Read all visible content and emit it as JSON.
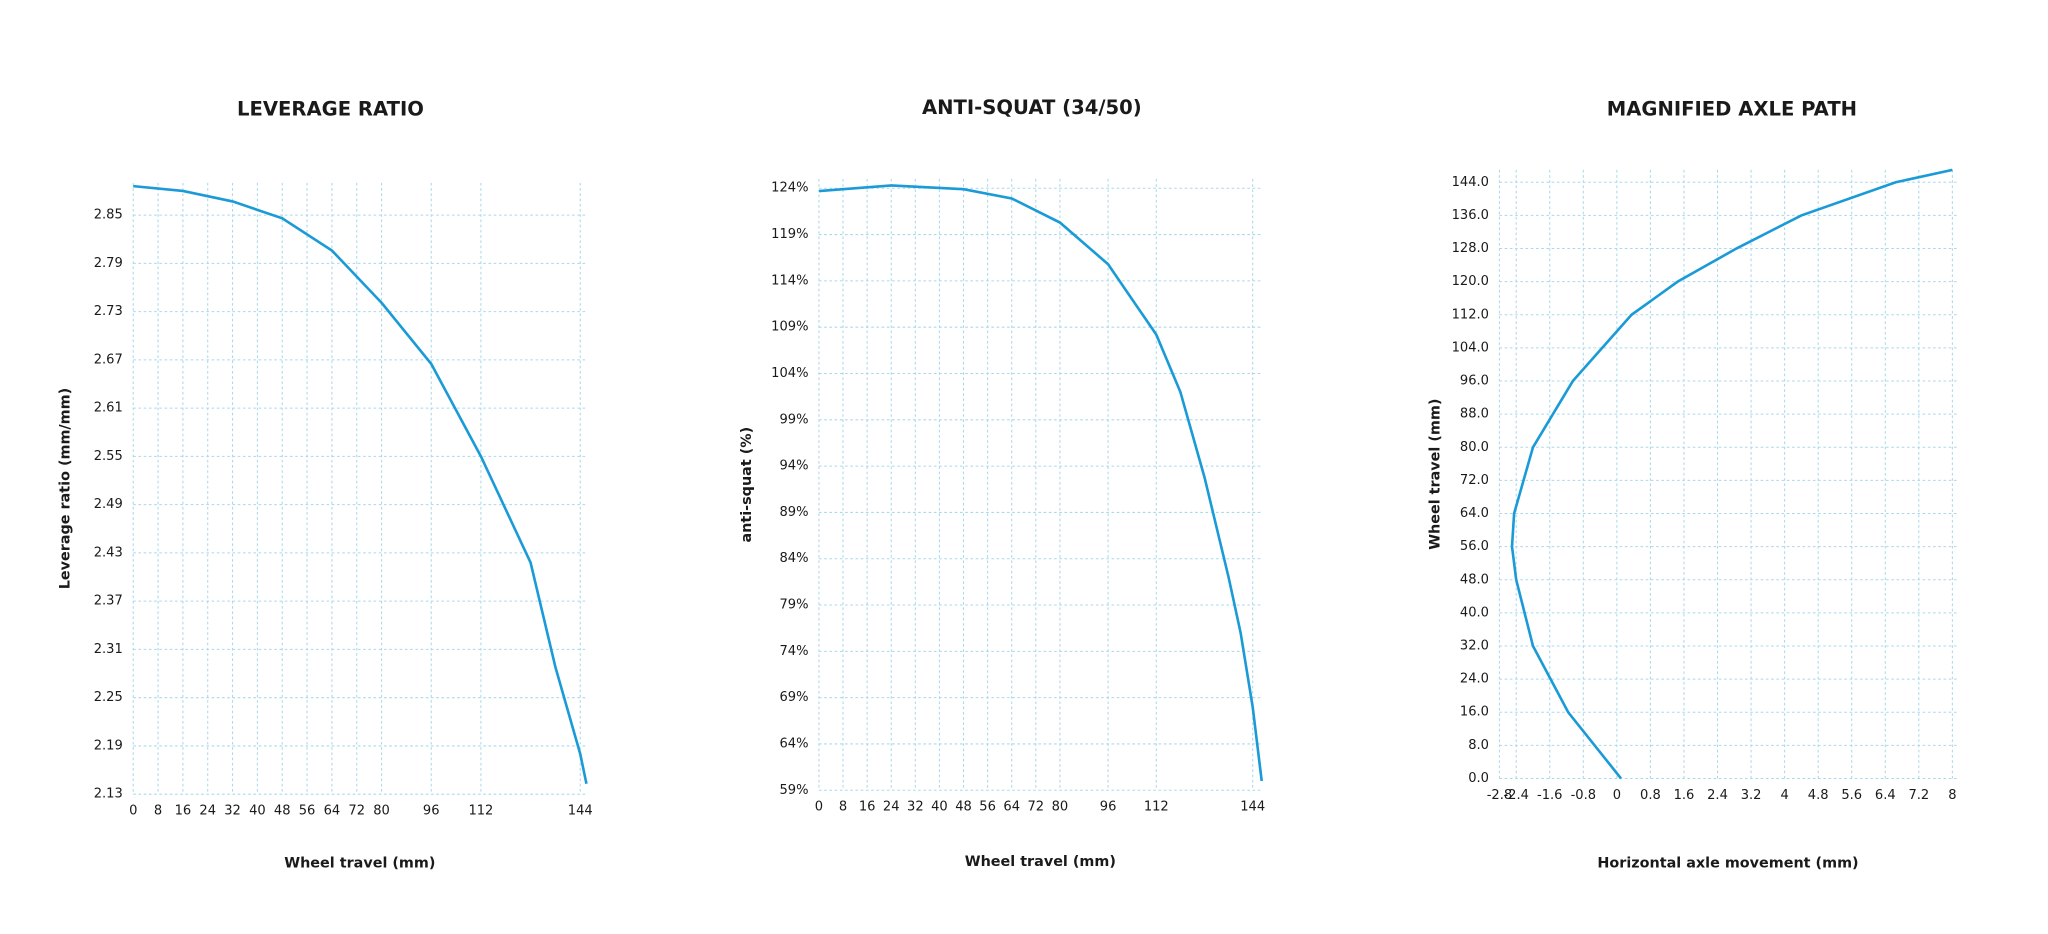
{
  "chart_data": [
    {
      "type": "line",
      "title": "LEVERAGE RATIO",
      "x_label": "Wheel travel (mm)",
      "y_label": "Leverage ratio (mm/mm)",
      "x": [
        0,
        16,
        32,
        48,
        64,
        80,
        96,
        112,
        128,
        136,
        144,
        146
      ],
      "values": [
        2.886,
        2.88,
        2.867,
        2.846,
        2.806,
        2.741,
        2.665,
        2.55,
        2.418,
        2.288,
        2.18,
        2.143
      ],
      "color": "#1a9ad6",
      "grid": true,
      "xlim": [
        0,
        146
      ],
      "ylim": [
        2.13,
        2.89
      ],
      "xticks": [
        0,
        8,
        16,
        24,
        32,
        40,
        48,
        56,
        64,
        72,
        80,
        96,
        112,
        144
      ],
      "yticks": [
        2.13,
        2.19,
        2.25,
        2.31,
        2.37,
        2.43,
        2.49,
        2.55,
        2.61,
        2.67,
        2.73,
        2.79,
        2.85
      ]
    },
    {
      "type": "line",
      "title": "ANTI-SQUAT (34/50)",
      "x_label": "Wheel travel (mm)",
      "y_label": "anti-squat (%)",
      "x": [
        0,
        24,
        48,
        64,
        80,
        96,
        112,
        120,
        128,
        136,
        140,
        144,
        147
      ],
      "values": [
        123.7,
        124.3,
        123.9,
        122.9,
        120.3,
        115.8,
        108.2,
        102,
        92.8,
        82,
        76,
        68,
        60
      ],
      "color": "#1a9ad6",
      "grid": true,
      "xlim": [
        0,
        147
      ],
      "ylim": [
        59,
        125
      ],
      "xticks": [
        0,
        8,
        16,
        24,
        32,
        40,
        48,
        56,
        64,
        72,
        80,
        96,
        112,
        144
      ],
      "yticks": [
        {
          "value": 59,
          "label": "59%"
        },
        {
          "value": 64,
          "label": "64%"
        },
        {
          "value": 69,
          "label": "69%"
        },
        {
          "value": 74,
          "label": "74%"
        },
        {
          "value": 79,
          "label": "79%"
        },
        {
          "value": 84,
          "label": "84%"
        },
        {
          "value": 89,
          "label": "89%"
        },
        {
          "value": 94,
          "label": "94%"
        },
        {
          "value": 99,
          "label": "99%"
        },
        {
          "value": 104,
          "label": "104%"
        },
        {
          "value": 109,
          "label": "109%"
        },
        {
          "value": 114,
          "label": "114%"
        },
        {
          "value": 119,
          "label": "119%"
        },
        {
          "value": 124,
          "label": "124%"
        }
      ]
    },
    {
      "type": "line",
      "title": "MAGNIFIED AXLE PATH",
      "x_label": "Horizontal axle movement (mm)",
      "y_label": "Wheel travel (mm)",
      "x": [
        0.1,
        -1.16,
        -2.0,
        -2.4,
        -2.5,
        -2.45,
        -2.0,
        -1.05,
        0.35,
        1.45,
        2.85,
        4.4,
        6.65,
        8.0
      ],
      "values": [
        0,
        16,
        32,
        48,
        56,
        64,
        80,
        96,
        112,
        120,
        128,
        136,
        144,
        147
      ],
      "color": "#1a9ad6",
      "grid": true,
      "xlim": [
        -2.8,
        8.1
      ],
      "ylim": [
        0,
        147
      ],
      "xticks": [
        -2.8,
        -2.4,
        -1.6,
        -0.8,
        0,
        0.8,
        1.6,
        2.4,
        3.2,
        4,
        4.8,
        5.6,
        6.4,
        7.2,
        8
      ],
      "yticks": [
        {
          "value": 0,
          "label": "0.0"
        },
        {
          "value": 8,
          "label": "8.0"
        },
        {
          "value": 16,
          "label": "16.0"
        },
        {
          "value": 24,
          "label": "24.0"
        },
        {
          "value": 32,
          "label": "32.0"
        },
        {
          "value": 40,
          "label": "40.0"
        },
        {
          "value": 48,
          "label": "48.0"
        },
        {
          "value": 56,
          "label": "56.0"
        },
        {
          "value": 64,
          "label": "64.0"
        },
        {
          "value": 72,
          "label": "72.0"
        },
        {
          "value": 80,
          "label": "80.0"
        },
        {
          "value": 88,
          "label": "88.0"
        },
        {
          "value": 96,
          "label": "96.0"
        },
        {
          "value": 104,
          "label": "104.0"
        },
        {
          "value": 112,
          "label": "112.0"
        },
        {
          "value": 120,
          "label": "120.0"
        },
        {
          "value": 128,
          "label": "128.0"
        },
        {
          "value": 136,
          "label": "136.0"
        },
        {
          "value": 144,
          "label": "144.0"
        }
      ]
    }
  ]
}
